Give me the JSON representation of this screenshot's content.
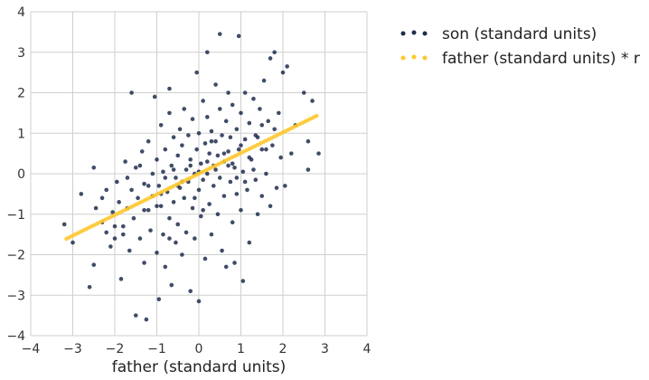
{
  "chart_data": {
    "type": "scatter",
    "title": "",
    "xlabel": "father (standard units)",
    "ylabel": "",
    "xlim": [
      -4,
      4
    ],
    "ylim": [
      -4,
      4
    ],
    "xticks": [
      "−4",
      "−3",
      "−2",
      "−1",
      "0",
      "1",
      "2",
      "3",
      "4"
    ],
    "yticks": [
      "−4",
      "−3",
      "−2",
      "−1",
      "0",
      "1",
      "2",
      "3",
      "4"
    ],
    "grid": true,
    "legend": "outside-right",
    "series": [
      {
        "name": "son (standard units)",
        "color": "#1f2d4d",
        "points": [
          [
            -3.2,
            -1.25
          ],
          [
            -3.0,
            -1.7
          ],
          [
            -2.8,
            -0.5
          ],
          [
            -2.6,
            -2.8
          ],
          [
            -2.5,
            -2.25
          ],
          [
            -2.5,
            0.15
          ],
          [
            -2.45,
            -0.85
          ],
          [
            -2.3,
            -1.2
          ],
          [
            -2.2,
            -0.4
          ],
          [
            -2.1,
            -1.8
          ],
          [
            -2.05,
            -0.95
          ],
          [
            -2.0,
            -1.6
          ],
          [
            -1.95,
            -0.2
          ],
          [
            -1.9,
            -0.7
          ],
          [
            -1.85,
            -2.6
          ],
          [
            -1.8,
            -1.3
          ],
          [
            -1.75,
            0.3
          ],
          [
            -1.7,
            -0.85
          ],
          [
            -1.65,
            -1.9
          ],
          [
            -1.6,
            -0.4
          ],
          [
            -1.6,
            2.0
          ],
          [
            -1.55,
            -1.1
          ],
          [
            -1.5,
            0.15
          ],
          [
            -1.5,
            -3.5
          ],
          [
            -1.45,
            -0.6
          ],
          [
            -1.4,
            -1.6
          ],
          [
            -1.35,
            0.55
          ],
          [
            -1.3,
            -0.25
          ],
          [
            -1.3,
            -2.2
          ],
          [
            -1.25,
            -3.6
          ],
          [
            -1.2,
            -0.9
          ],
          [
            -1.2,
            0.8
          ],
          [
            -1.15,
            -1.4
          ],
          [
            -1.1,
            0.0
          ],
          [
            -1.1,
            -0.55
          ],
          [
            -1.05,
            1.9
          ],
          [
            -1.0,
            -1.95
          ],
          [
            -1.0,
            0.35
          ],
          [
            -0.95,
            -0.3
          ],
          [
            -0.95,
            -3.1
          ],
          [
            -0.9,
            1.2
          ],
          [
            -0.9,
            -0.8
          ],
          [
            -0.85,
            -1.5
          ],
          [
            -0.85,
            0.05
          ],
          [
            -0.8,
            -2.3
          ],
          [
            -0.8,
            0.6
          ],
          [
            -0.75,
            -0.45
          ],
          [
            -0.7,
            1.5
          ],
          [
            -0.7,
            -1.1
          ],
          [
            -0.7,
            2.1
          ],
          [
            -0.65,
            0.2
          ],
          [
            -0.65,
            -2.75
          ],
          [
            -0.6,
            -0.7
          ],
          [
            -0.6,
            0.9
          ],
          [
            -0.55,
            -1.7
          ],
          [
            -0.55,
            -0.1
          ],
          [
            -0.5,
            0.45
          ],
          [
            -0.5,
            -1.25
          ],
          [
            -0.45,
            1.1
          ],
          [
            -0.45,
            -0.35
          ],
          [
            -0.4,
            -2.0
          ],
          [
            -0.4,
            0.7
          ],
          [
            -0.35,
            -0.6
          ],
          [
            -0.35,
            1.6
          ],
          [
            -0.3,
            0.1
          ],
          [
            -0.3,
            -1.45
          ],
          [
            -0.25,
            0.95
          ],
          [
            -0.25,
            -0.2
          ],
          [
            -0.2,
            -2.9
          ],
          [
            -0.2,
            0.35
          ],
          [
            -0.15,
            -0.85
          ],
          [
            -0.15,
            1.35
          ],
          [
            -0.1,
            0.0
          ],
          [
            -0.1,
            -1.6
          ],
          [
            -0.05,
            0.6
          ],
          [
            -0.05,
            2.5
          ],
          [
            0.0,
            -0.4
          ],
          [
            0.0,
            1.0
          ],
          [
            0.0,
            -3.15
          ],
          [
            0.05,
            0.25
          ],
          [
            0.05,
            -1.05
          ],
          [
            0.1,
            1.8
          ],
          [
            0.1,
            -0.15
          ],
          [
            0.15,
            0.75
          ],
          [
            0.15,
            -2.1
          ],
          [
            0.2,
            0.0
          ],
          [
            0.2,
            1.4
          ],
          [
            0.2,
            3.0
          ],
          [
            0.25,
            -0.75
          ],
          [
            0.25,
            0.5
          ],
          [
            0.3,
            -1.5
          ],
          [
            0.3,
            1.05
          ],
          [
            0.35,
            0.2
          ],
          [
            0.35,
            -0.3
          ],
          [
            0.4,
            2.2
          ],
          [
            0.4,
            0.8
          ],
          [
            0.45,
            -1.0
          ],
          [
            0.45,
            0.45
          ],
          [
            0.5,
            1.6
          ],
          [
            0.5,
            -0.1
          ],
          [
            0.5,
            3.45
          ],
          [
            0.55,
            -1.9
          ],
          [
            0.55,
            0.95
          ],
          [
            0.6,
            0.3
          ],
          [
            0.6,
            -0.55
          ],
          [
            0.65,
            1.3
          ],
          [
            0.65,
            -2.3
          ],
          [
            0.7,
            0.55
          ],
          [
            0.7,
            2.0
          ],
          [
            0.75,
            -0.2
          ],
          [
            0.75,
            0.9
          ],
          [
            0.8,
            -1.2
          ],
          [
            0.8,
            1.7
          ],
          [
            0.85,
            0.15
          ],
          [
            0.85,
            -2.2
          ],
          [
            0.9,
            1.1
          ],
          [
            0.9,
            -0.5
          ],
          [
            0.95,
            3.4
          ],
          [
            0.95,
            0.6
          ],
          [
            1.0,
            -0.9
          ],
          [
            1.0,
            1.5
          ],
          [
            1.05,
            0.05
          ],
          [
            1.05,
            -2.65
          ],
          [
            1.1,
            0.85
          ],
          [
            1.1,
            2.0
          ],
          [
            1.15,
            -0.4
          ],
          [
            1.2,
            1.25
          ],
          [
            1.2,
            -1.7
          ],
          [
            1.25,
            0.35
          ],
          [
            1.3,
            1.85
          ],
          [
            1.35,
            -0.15
          ],
          [
            1.35,
            0.95
          ],
          [
            1.4,
            -1.0
          ],
          [
            1.45,
            1.6
          ],
          [
            1.5,
            0.6
          ],
          [
            1.5,
            -0.55
          ],
          [
            1.55,
            2.3
          ],
          [
            1.6,
            0.0
          ],
          [
            1.65,
            1.3
          ],
          [
            1.7,
            -0.8
          ],
          [
            1.7,
            2.85
          ],
          [
            1.75,
            0.7
          ],
          [
            1.8,
            3.0
          ],
          [
            1.85,
            -0.35
          ],
          [
            1.9,
            1.5
          ],
          [
            1.95,
            0.4
          ],
          [
            2.0,
            2.5
          ],
          [
            2.05,
            -0.3
          ],
          [
            2.1,
            2.65
          ],
          [
            2.2,
            0.5
          ],
          [
            2.5,
            2.0
          ],
          [
            2.6,
            0.8
          ],
          [
            2.6,
            0.1
          ],
          [
            2.7,
            1.8
          ],
          [
            2.85,
            0.5
          ],
          [
            -2.3,
            -0.6
          ],
          [
            -2.0,
            -1.3
          ],
          [
            -1.7,
            -0.1
          ],
          [
            -1.4,
            0.2
          ],
          [
            -1.2,
            -0.3
          ],
          [
            -1.0,
            -0.8
          ],
          [
            -0.8,
            -0.1
          ],
          [
            -0.6,
            0.1
          ],
          [
            -0.4,
            -0.2
          ],
          [
            -0.2,
            0.2
          ],
          [
            0.0,
            0.05
          ],
          [
            0.2,
            0.3
          ],
          [
            0.4,
            0.1
          ],
          [
            0.6,
            0.5
          ],
          [
            0.8,
            0.25
          ],
          [
            1.0,
            0.7
          ],
          [
            1.2,
            0.4
          ],
          [
            1.4,
            0.9
          ],
          [
            1.6,
            0.6
          ],
          [
            1.8,
            1.1
          ],
          [
            -1.3,
            -0.9
          ],
          [
            -0.9,
            -0.5
          ],
          [
            -0.5,
            -0.3
          ],
          [
            -0.1,
            -0.6
          ],
          [
            0.3,
            0.8
          ],
          [
            0.7,
            0.2
          ],
          [
            1.1,
            -0.2
          ],
          [
            1.5,
            1.2
          ],
          [
            -1.8,
            -1.5
          ],
          [
            -0.7,
            -1.6
          ],
          [
            0.1,
            -0.9
          ],
          [
            0.9,
            -0.1
          ],
          [
            1.3,
            0.1
          ],
          [
            -2.2,
            -1.45
          ],
          [
            2.3,
            1.2
          ]
        ]
      },
      {
        "name": "father (standard units) * r",
        "color": "#fdc82f",
        "r": 0.51,
        "x_from": -3.15,
        "x_to": 2.8,
        "count": 90
      }
    ]
  }
}
